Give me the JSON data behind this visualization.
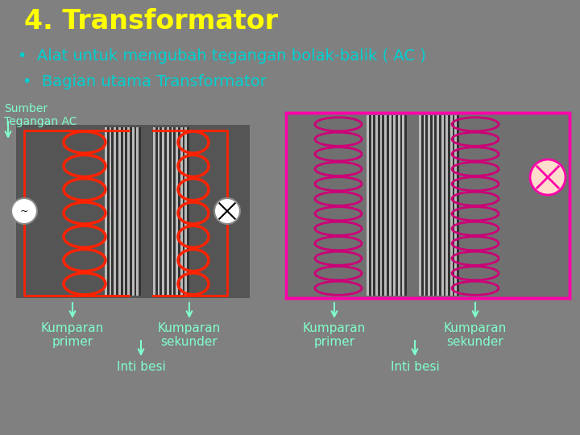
{
  "bg_color": "#808080",
  "title": "4. Transformator",
  "title_color": "#ffff00",
  "title_fontsize": 24,
  "bullet1": "Alat untuk mengubah tegangan bolak-balik ( AC )",
  "bullet2": "Bagian utama Transformator",
  "bullet_color": "#00d0d0",
  "bullet_fontsize": 14,
  "label_color": "#80ffcc",
  "label_fontsize": 11,
  "arrow_color": "#80ffcc",
  "wire_color_left": "#ff2200",
  "wire_color_right": "#ff00aa",
  "coil_color_left": "#ff2200",
  "coil_color_right": "#cc0077",
  "core_stripe_light": "#bbbbbb",
  "core_stripe_dark": "#333333",
  "left_box_color": "#5a5a5a",
  "right_box_bg": "#707070"
}
